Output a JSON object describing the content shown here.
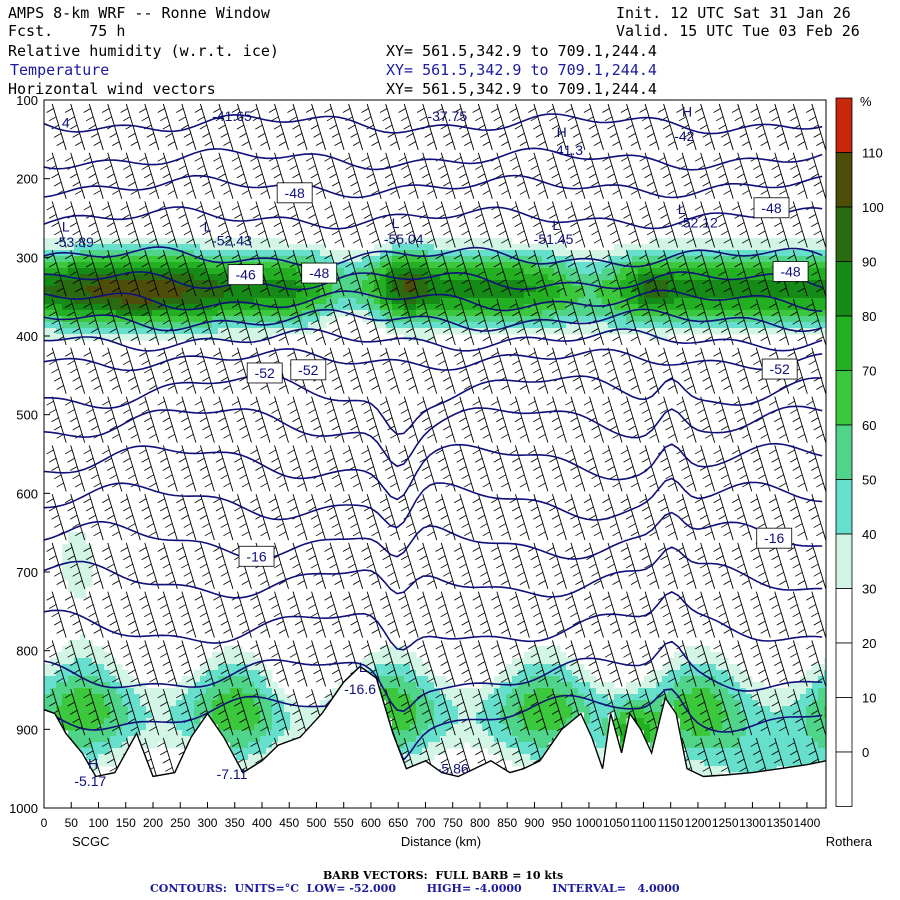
{
  "header": {
    "title": "AMPS 8-km WRF -- Ronne Window",
    "forecast": "Fcst.    75 h",
    "init": "Init. 12 UTC Sat 31 Jan 26",
    "valid": "Valid. 15 UTC Tue 03 Feb 26",
    "field1": "Relative humidity (w.r.t. ice)",
    "field2": "Temperature",
    "field3": "Horizontal wind vectors",
    "xy1": "XY= 561.5,342.9 to 709.1,244.4",
    "xy2": "XY= 561.5,342.9 to 709.1,244.4",
    "xy3": "XY= 561.5,342.9 to 709.1,244.4"
  },
  "footer": {
    "barb": "BARB VECTORS:  FULL BARB = 10 kts",
    "contours": "CONTOURS:  UNITS=°C  LOW= -52.000        HIGH= -4.0000        INTERVAL=   4.0000"
  },
  "colors": {
    "temperature_contour": "#10107a",
    "rh_bins": [
      "#ffffff",
      "#ffffff",
      "#ffffff",
      "#ffffff",
      "#d2f5e6",
      "#66e0cc",
      "#4fd48a",
      "#3cc83c",
      "#22b022",
      "#168a16",
      "#2a6a10",
      "#4e4e0a",
      "#c8280a"
    ]
  },
  "chart_data": {
    "type": "heatmap",
    "x_tick_labels": [
      "0",
      "50",
      "100",
      "150",
      "200",
      "250",
      "300",
      "350",
      "400",
      "450",
      "500",
      "550",
      "600",
      "650",
      "700",
      "750",
      "800",
      "850",
      "900",
      "950",
      "1000",
      "1050",
      "1100",
      "1150",
      "1200",
      "1250",
      "1300",
      "1350",
      "1400"
    ],
    "xlim": [
      0,
      1435
    ],
    "ylim": [
      1000,
      100
    ],
    "y_tick_labels": [
      "100",
      "200",
      "300",
      "400",
      "500",
      "600",
      "700",
      "800",
      "900",
      "1000"
    ],
    "xlabel": "Distance (km)",
    "left_endpoint": "SCGC",
    "right_endpoint": "Rothera",
    "colorbar": {
      "unit": "%",
      "tick_labels": [
        "110",
        "100",
        "90",
        "80",
        "70",
        "60",
        "50",
        "40",
        "30",
        "20",
        "10",
        "0"
      ]
    },
    "contour_labels": [
      {
        "text": "-48",
        "x": 460,
        "p": 218
      },
      {
        "text": "-48",
        "x": 1335,
        "p": 237
      },
      {
        "text": "-46",
        "x": 370,
        "p": 322
      },
      {
        "text": "-48",
        "x": 505,
        "p": 320
      },
      {
        "text": "-48",
        "x": 1370,
        "p": 318
      },
      {
        "text": "-52",
        "x": 405,
        "p": 447
      },
      {
        "text": "-52",
        "x": 485,
        "p": 443
      },
      {
        "text": "-52",
        "x": 1350,
        "p": 442
      },
      {
        "text": "-16",
        "x": 390,
        "p": 680
      },
      {
        "text": "-16",
        "x": 1340,
        "p": 657
      }
    ],
    "extrema_labels": [
      {
        "text": "4",
        "x": 40,
        "p": 135
      },
      {
        "text": "-41.65",
        "x": 345,
        "p": 127
      },
      {
        "text": "-37.75",
        "x": 740,
        "p": 127
      },
      {
        "text": "H",
        "x": 950,
        "p": 147
      },
      {
        "text": "-41.3",
        "x": 960,
        "p": 170
      },
      {
        "text": "H",
        "x": 1180,
        "p": 121
      },
      {
        "text": "-42",
        "x": 1175,
        "p": 152
      },
      {
        "text": "L",
        "x": 40,
        "p": 267
      },
      {
        "text": "-53.89",
        "x": 55,
        "p": 287
      },
      {
        "text": "L",
        "x": 300,
        "p": 267
      },
      {
        "text": "-52.43",
        "x": 345,
        "p": 285
      },
      {
        "text": "L",
        "x": 645,
        "p": 263
      },
      {
        "text": "-55.04",
        "x": 660,
        "p": 283
      },
      {
        "text": "L",
        "x": 940,
        "p": 265
      },
      {
        "text": "-51.45",
        "x": 935,
        "p": 283
      },
      {
        "text": "L",
        "x": 1170,
        "p": 245
      },
      {
        "text": "-52.12",
        "x": 1200,
        "p": 262
      },
      {
        "text": "L",
        "x": 585,
        "p": 827
      },
      {
        "text": "-16.6",
        "x": 580,
        "p": 855
      },
      {
        "text": "H",
        "x": 90,
        "p": 950
      },
      {
        "text": "-5.17",
        "x": 85,
        "p": 972
      },
      {
        "text": "-7.11",
        "x": 345,
        "p": 963
      },
      {
        "text": "-5.86",
        "x": 750,
        "p": 956
      }
    ]
  }
}
